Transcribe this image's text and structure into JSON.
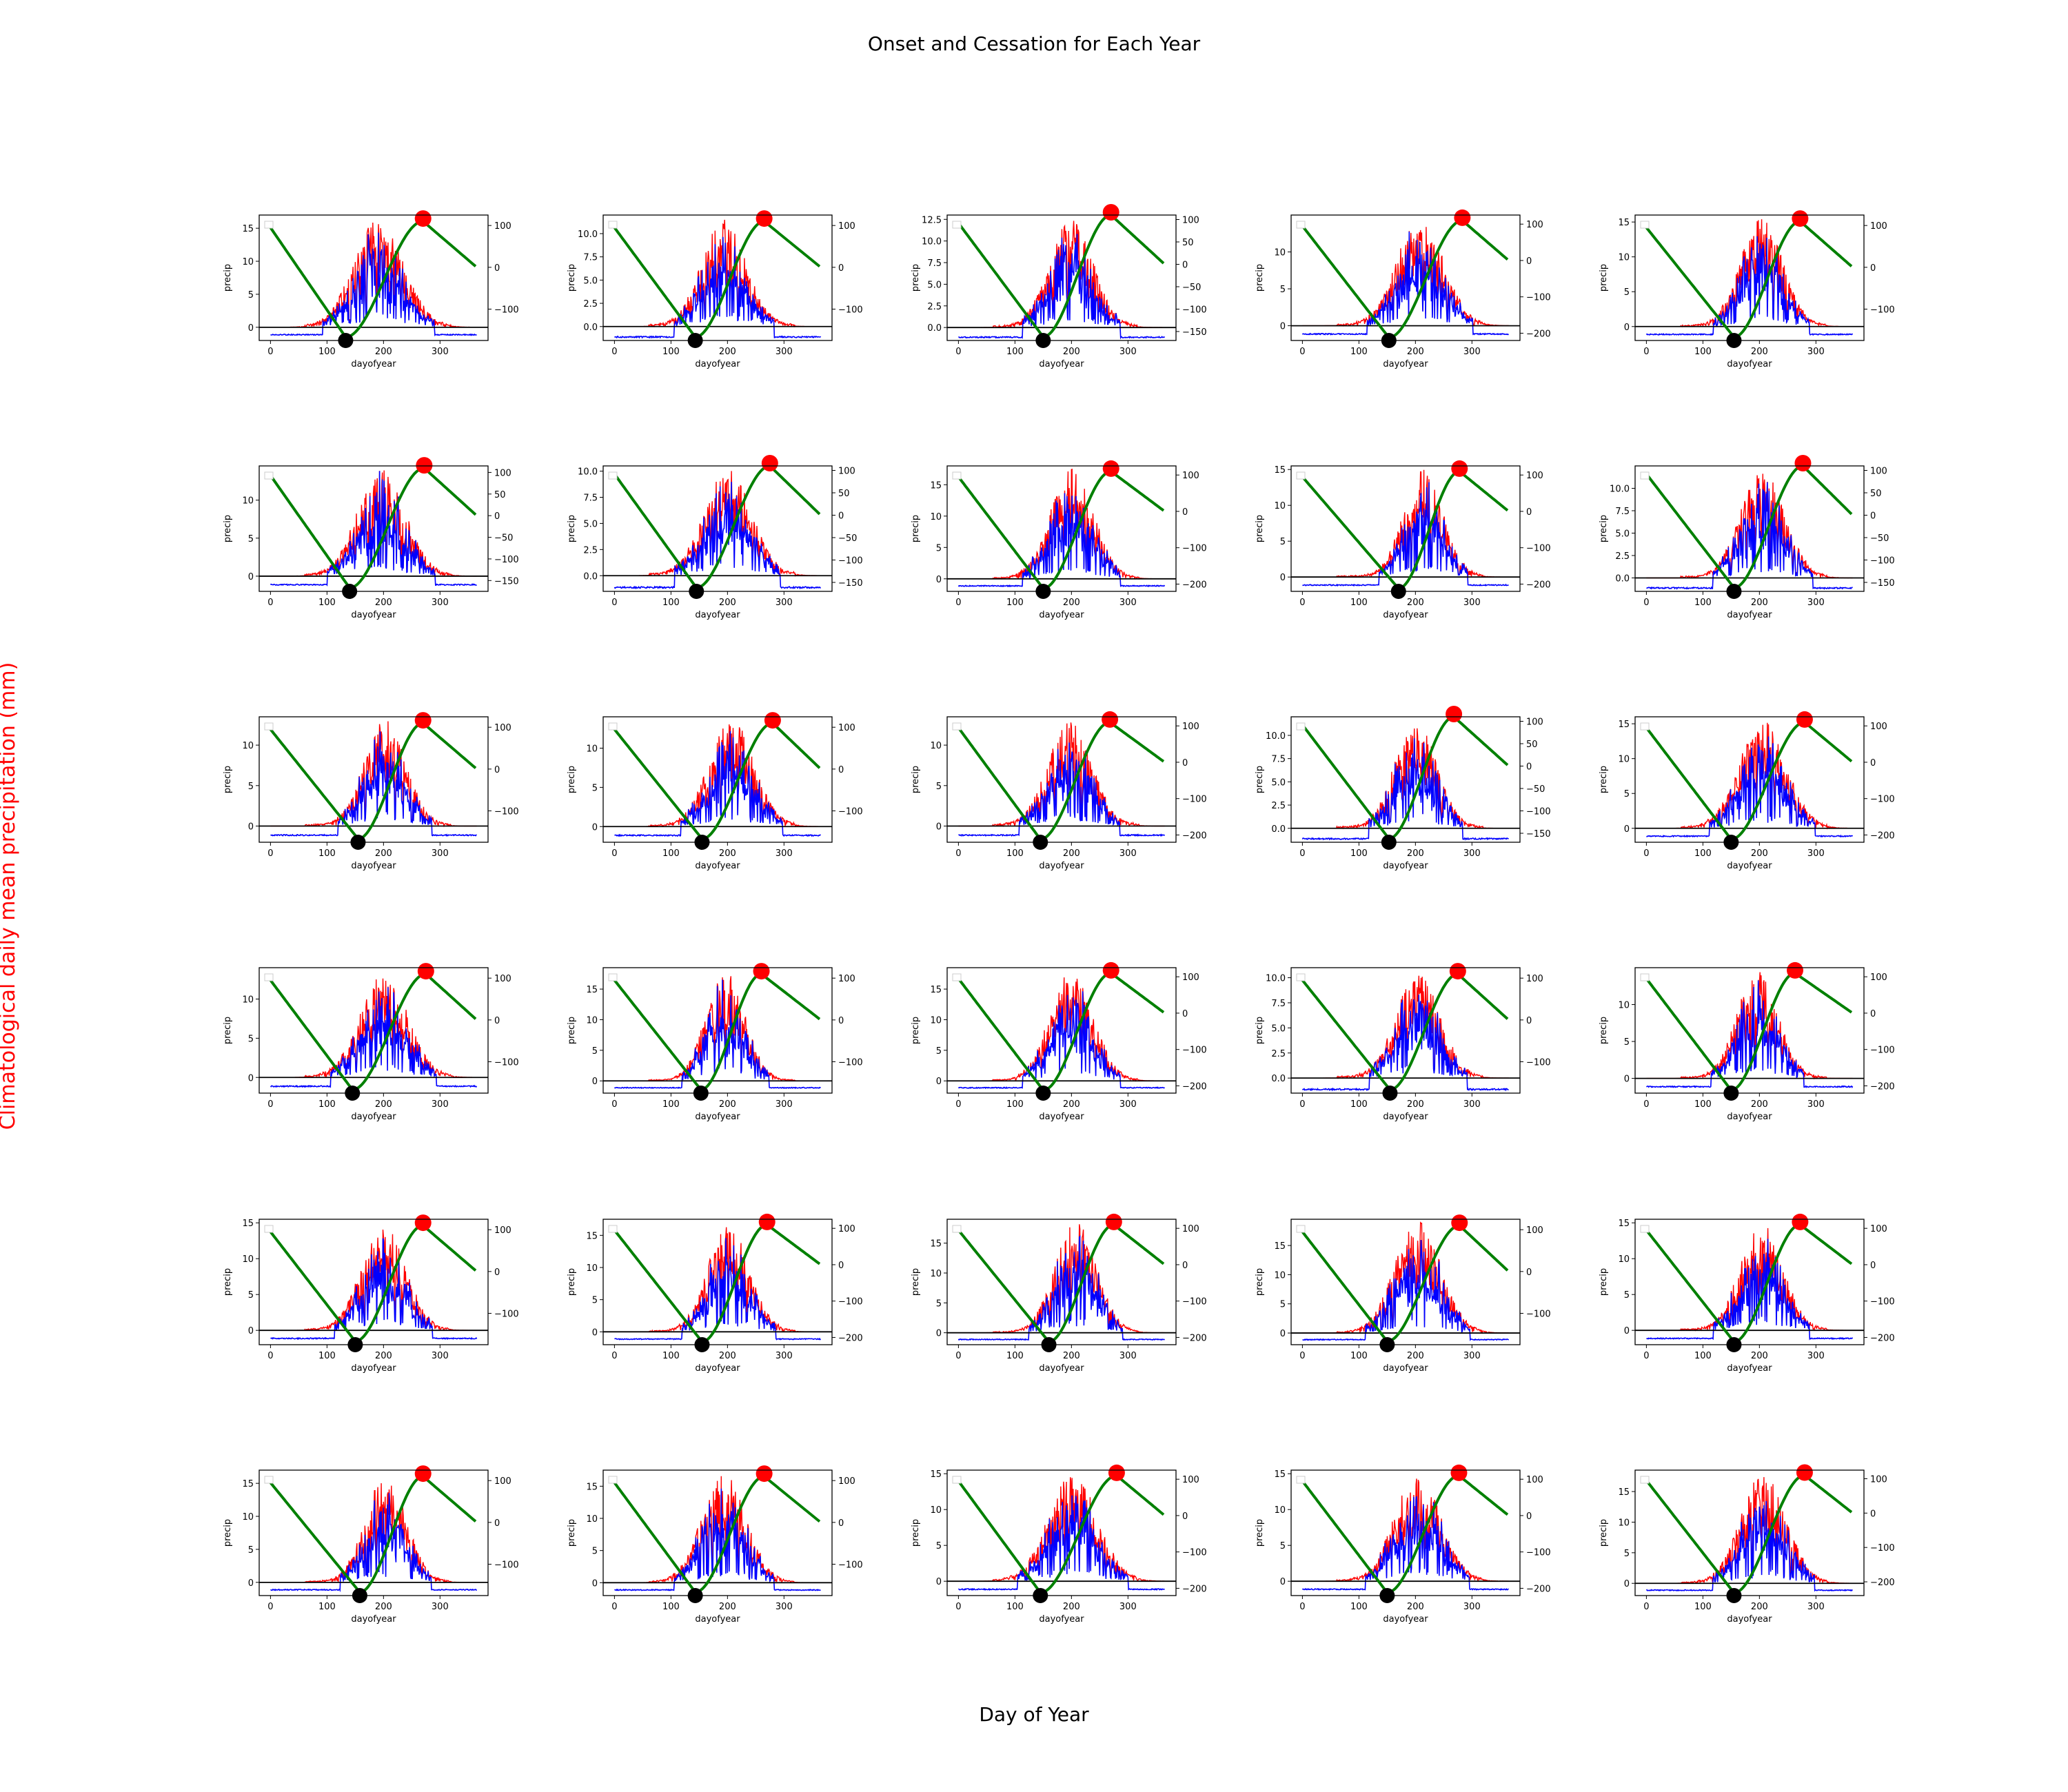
{
  "figure": {
    "title": "Onset and Cessation for Each Year",
    "supxlabel": "Day of Year",
    "supylabel_left": "Climatological daily mean precipitation (mm)",
    "supylabel_left_color": "#ff0000"
  },
  "colors": {
    "precip_red": "#ff0000",
    "precip_blue": "#0000ff",
    "cumulative_green": "#008000",
    "onset_marker": "#000000",
    "cessation_marker": "#ff0000",
    "baseline": "#000000"
  },
  "chart_data": {
    "type": "line",
    "layout": {
      "rows": 6,
      "cols": 5,
      "panel_count": 30
    },
    "panel_axes": {
      "xlabel": "dayofyear",
      "ylabel": "precip",
      "xlim": [
        -20,
        385
      ],
      "xticks": [
        0,
        100,
        200,
        300
      ],
      "legend": "top-left (empty)",
      "grid": false
    },
    "series": [
      {
        "name": "",
        "color": "#ff0000",
        "axis": "left",
        "kind": "daily precipitation (red)"
      },
      {
        "name": "",
        "color": "#0000ff",
        "axis": "left",
        "kind": "daily precipitation (blue)"
      },
      {
        "name": "",
        "color": "#008000",
        "axis": "right",
        "kind": "cumulative anomaly"
      }
    ],
    "panels": [
      {
        "onset": 133,
        "cessation": 270,
        "ylim_left": [
          -2.0,
          17
        ],
        "yticks_left": [
          0,
          5,
          10,
          15
        ],
        "ylim_right": [
          -175,
          125
        ],
        "yticks_right": [
          100,
          0,
          -100
        ],
        "peak": 16.5
      },
      {
        "onset": 143,
        "cessation": 265,
        "ylim_left": [
          -1.5,
          12.0
        ],
        "yticks_left": [
          0.0,
          2.5,
          5.0,
          7.5,
          10.0
        ],
        "ylim_right": [
          -175,
          125
        ],
        "yticks_right": [
          100,
          0,
          -100
        ],
        "peak": 11.5
      },
      {
        "onset": 150,
        "cessation": 270,
        "ylim_left": [
          -1.5,
          13.0
        ],
        "yticks_left": [
          0.0,
          2.5,
          5.0,
          7.5,
          10.0,
          12.5
        ],
        "ylim_right": [
          -170,
          110
        ],
        "yticks_right": [
          100,
          50,
          0,
          -50,
          -100,
          -150
        ],
        "peak": 12.5
      },
      {
        "onset": 153,
        "cessation": 283,
        "ylim_left": [
          -2.0,
          15
        ],
        "yticks_left": [
          0,
          5,
          10
        ],
        "ylim_right": [
          -220,
          125
        ],
        "yticks_right": [
          100,
          0,
          -100,
          -200
        ],
        "peak": 14.5
      },
      {
        "onset": 155,
        "cessation": 272,
        "ylim_left": [
          -2.0,
          16
        ],
        "yticks_left": [
          0,
          5,
          10,
          15
        ],
        "ylim_right": [
          -175,
          125
        ],
        "yticks_right": [
          100,
          0,
          -100
        ],
        "peak": 15.5
      },
      {
        "onset": 140,
        "cessation": 272,
        "ylim_left": [
          -2.0,
          14.5
        ],
        "yticks_left": [
          0,
          5,
          10
        ],
        "ylim_right": [
          -175,
          115
        ],
        "yticks_right": [
          100,
          50,
          0,
          -50,
          -100,
          -150
        ],
        "peak": 14
      },
      {
        "onset": 145,
        "cessation": 275,
        "ylim_left": [
          -1.5,
          10.5
        ],
        "yticks_left": [
          0.0,
          2.5,
          5.0,
          7.5,
          10.0
        ],
        "ylim_right": [
          -170,
          110
        ],
        "yticks_right": [
          100,
          50,
          0,
          -50,
          -100,
          -150
        ],
        "peak": 10.2
      },
      {
        "onset": 150,
        "cessation": 270,
        "ylim_left": [
          -2.0,
          18
        ],
        "yticks_left": [
          0,
          5,
          10,
          15
        ],
        "ylim_right": [
          -220,
          125
        ],
        "yticks_right": [
          100,
          0,
          -100,
          -200
        ],
        "peak": 17.5
      },
      {
        "onset": 170,
        "cessation": 278,
        "ylim_left": [
          -2.0,
          15.5
        ],
        "yticks_left": [
          0,
          5,
          10,
          15
        ],
        "ylim_right": [
          -220,
          125
        ],
        "yticks_right": [
          100,
          0,
          -100,
          -200
        ],
        "peak": 15
      },
      {
        "onset": 155,
        "cessation": 277,
        "ylim_left": [
          -1.5,
          12.5
        ],
        "yticks_left": [
          0.0,
          2.5,
          5.0,
          7.5,
          10.0
        ],
        "ylim_right": [
          -170,
          110
        ],
        "yticks_right": [
          100,
          50,
          0,
          -50,
          -100,
          -150
        ],
        "peak": 12
      },
      {
        "onset": 155,
        "cessation": 270,
        "ylim_left": [
          -2.0,
          13.5
        ],
        "yticks_left": [
          0,
          5,
          10
        ],
        "ylim_right": [
          -175,
          125
        ],
        "yticks_right": [
          100,
          0,
          -100
        ],
        "peak": 13
      },
      {
        "onset": 155,
        "cessation": 280,
        "ylim_left": [
          -2.0,
          14
        ],
        "yticks_left": [
          0,
          5,
          10
        ],
        "ylim_right": [
          -175,
          125
        ],
        "yticks_right": [
          100,
          0,
          -100
        ],
        "peak": 13.5
      },
      {
        "onset": 145,
        "cessation": 268,
        "ylim_left": [
          -2.0,
          13.5
        ],
        "yticks_left": [
          0,
          5,
          10
        ],
        "ylim_right": [
          -220,
          125
        ],
        "yticks_right": [
          100,
          0,
          -100,
          -200
        ],
        "peak": 13
      },
      {
        "onset": 153,
        "cessation": 268,
        "ylim_left": [
          -1.5,
          12.0
        ],
        "yticks_left": [
          0.0,
          2.5,
          5.0,
          7.5,
          10.0
        ],
        "ylim_right": [
          -170,
          110
        ],
        "yticks_right": [
          100,
          50,
          0,
          -50,
          -100,
          -150
        ],
        "peak": 11.5
      },
      {
        "onset": 150,
        "cessation": 280,
        "ylim_left": [
          -2.0,
          16
        ],
        "yticks_left": [
          0,
          5,
          10,
          15
        ],
        "ylim_right": [
          -220,
          125
        ],
        "yticks_right": [
          100,
          0,
          -100,
          -200
        ],
        "peak": 15.5
      },
      {
        "onset": 145,
        "cessation": 275,
        "ylim_left": [
          -2.0,
          14
        ],
        "yticks_left": [
          0,
          5,
          10
        ],
        "ylim_right": [
          -175,
          125
        ],
        "yticks_right": [
          100,
          0,
          -100
        ],
        "peak": 13.5
      },
      {
        "onset": 153,
        "cessation": 260,
        "ylim_left": [
          -2.0,
          18.5
        ],
        "yticks_left": [
          0,
          5,
          10,
          15
        ],
        "ylim_right": [
          -175,
          125
        ],
        "yticks_right": [
          100,
          0,
          -100
        ],
        "peak": 18
      },
      {
        "onset": 150,
        "cessation": 270,
        "ylim_left": [
          -2.0,
          18.5
        ],
        "yticks_left": [
          0,
          5,
          10,
          15
        ],
        "ylim_right": [
          -220,
          125
        ],
        "yticks_right": [
          100,
          0,
          -100,
          -200
        ],
        "peak": 18
      },
      {
        "onset": 155,
        "cessation": 275,
        "ylim_left": [
          -1.5,
          11.0
        ],
        "yticks_left": [
          0.0,
          2.5,
          5.0,
          7.5,
          10.0
        ],
        "ylim_right": [
          -175,
          125
        ],
        "yticks_right": [
          100,
          0,
          -100
        ],
        "peak": 10.5
      },
      {
        "onset": 150,
        "cessation": 263,
        "ylim_left": [
          -2.0,
          15
        ],
        "yticks_left": [
          0,
          5,
          10
        ],
        "ylim_right": [
          -220,
          125
        ],
        "yticks_right": [
          100,
          0,
          -100,
          -200
        ],
        "peak": 14.5
      },
      {
        "onset": 150,
        "cessation": 270,
        "ylim_left": [
          -2.0,
          15.5
        ],
        "yticks_left": [
          0,
          5,
          10,
          15
        ],
        "ylim_right": [
          -175,
          125
        ],
        "yticks_right": [
          100,
          0,
          -100
        ],
        "peak": 15
      },
      {
        "onset": 155,
        "cessation": 270,
        "ylim_left": [
          -2.0,
          17.5
        ],
        "yticks_left": [
          0,
          5,
          10,
          15
        ],
        "ylim_right": [
          -220,
          125
        ],
        "yticks_right": [
          100,
          0,
          -100,
          -200
        ],
        "peak": 17
      },
      {
        "onset": 160,
        "cessation": 275,
        "ylim_left": [
          -2.0,
          19
        ],
        "yticks_left": [
          0,
          5,
          10,
          15
        ],
        "ylim_right": [
          -220,
          125
        ],
        "yticks_right": [
          100,
          0,
          -100,
          -200
        ],
        "peak": 18.5
      },
      {
        "onset": 150,
        "cessation": 278,
        "ylim_left": [
          -2.0,
          19.5
        ],
        "yticks_left": [
          0,
          5,
          10,
          15
        ],
        "ylim_right": [
          -175,
          125
        ],
        "yticks_right": [
          100,
          0,
          -100
        ],
        "peak": 19
      },
      {
        "onset": 155,
        "cessation": 272,
        "ylim_left": [
          -2.0,
          15.5
        ],
        "yticks_left": [
          0,
          5,
          10,
          15
        ],
        "ylim_right": [
          -220,
          125
        ],
        "yticks_right": [
          100,
          0,
          -100,
          -200
        ],
        "peak": 15
      },
      {
        "onset": 158,
        "cessation": 270,
        "ylim_left": [
          -2.0,
          17
        ],
        "yticks_left": [
          0,
          5,
          10,
          15
        ],
        "ylim_right": [
          -175,
          125
        ],
        "yticks_right": [
          100,
          0,
          -100
        ],
        "peak": 16
      },
      {
        "onset": 143,
        "cessation": 265,
        "ylim_left": [
          -2.0,
          17.5
        ],
        "yticks_left": [
          0,
          5,
          10,
          15
        ],
        "ylim_right": [
          -175,
          125
        ],
        "yticks_right": [
          100,
          0,
          -100
        ],
        "peak": 17
      },
      {
        "onset": 145,
        "cessation": 280,
        "ylim_left": [
          -2.0,
          15.5
        ],
        "yticks_left": [
          0,
          5,
          10,
          15
        ],
        "ylim_right": [
          -220,
          125
        ],
        "yticks_right": [
          100,
          0,
          -100,
          -200
        ],
        "peak": 15
      },
      {
        "onset": 150,
        "cessation": 277,
        "ylim_left": [
          -2.0,
          15.5
        ],
        "yticks_left": [
          0,
          5,
          10,
          15
        ],
        "ylim_right": [
          -220,
          125
        ],
        "yticks_right": [
          100,
          0,
          -100,
          -200
        ],
        "peak": 15
      },
      {
        "onset": 155,
        "cessation": 280,
        "ylim_left": [
          -2.0,
          18.5
        ],
        "yticks_left": [
          0,
          5,
          10,
          15
        ],
        "ylim_right": [
          -240,
          125
        ],
        "yticks_right": [
          100,
          0,
          -100,
          -200
        ],
        "peak": 18
      }
    ]
  }
}
